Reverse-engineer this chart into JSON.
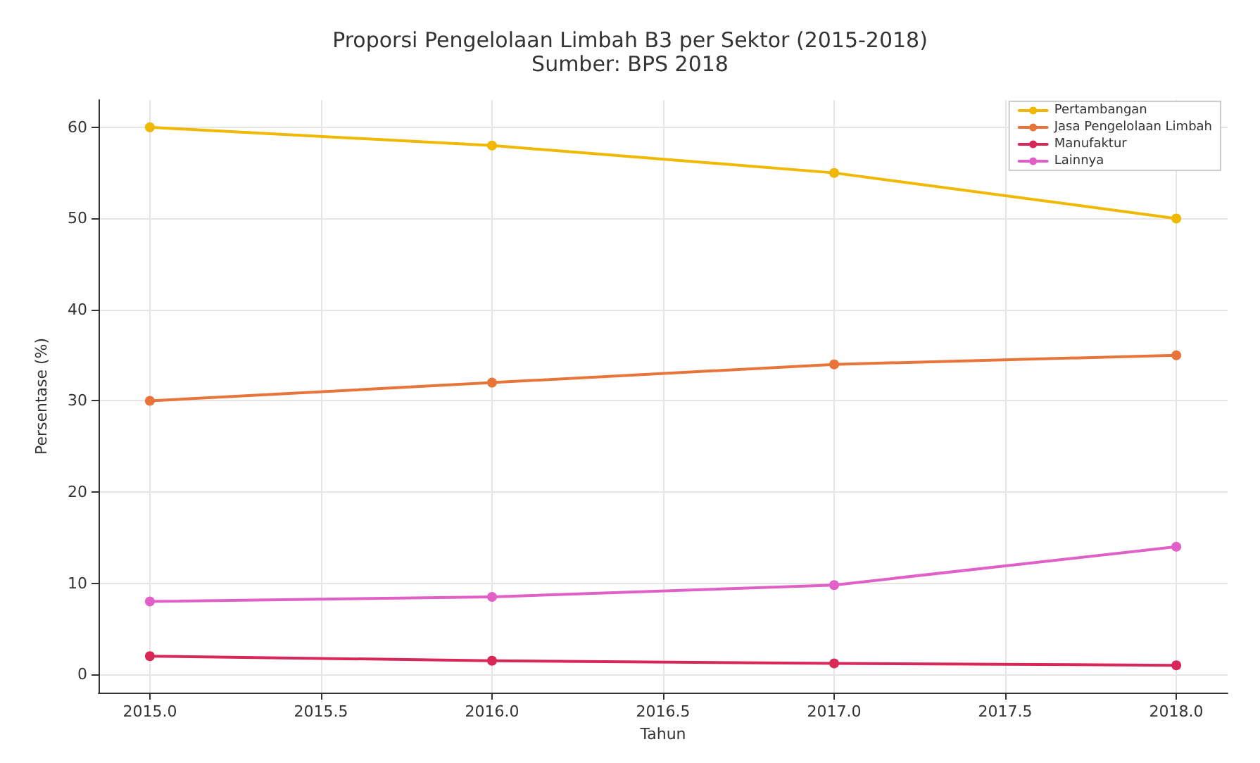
{
  "chart_data": {
    "type": "line",
    "title": "Proporsi Pengelolaan Limbah B3 per Sektor (2015-2018)",
    "subtitle": "Sumber: BPS 2018",
    "xlabel": "Tahun",
    "ylabel": "Persentase (%)",
    "x": [
      2015,
      2016,
      2017,
      2018
    ],
    "series": [
      {
        "name": "Pertambangan",
        "color": "#f0b800",
        "values": [
          60,
          58,
          55,
          50
        ]
      },
      {
        "name": "Jasa Pengelolaan Limbah",
        "color": "#e8743a",
        "values": [
          30,
          32,
          34,
          35
        ]
      },
      {
        "name": "Manufaktur",
        "color": "#d8285a",
        "values": [
          2,
          1.5,
          1.2,
          1
        ]
      },
      {
        "name": "Lainnya",
        "color": "#e060c8",
        "values": [
          8,
          8.5,
          9.8,
          14
        ]
      }
    ],
    "xlim": [
      2014.85,
      2018.15
    ],
    "xticks": [
      {
        "value": 2015,
        "label": "2015.0"
      },
      {
        "value": 2015.5,
        "label": "2015.5"
      },
      {
        "value": 2016,
        "label": "2016.0"
      },
      {
        "value": 2016.5,
        "label": "2016.5"
      },
      {
        "value": 2017,
        "label": "2017.0"
      },
      {
        "value": 2017.5,
        "label": "2017.5"
      },
      {
        "value": 2018,
        "label": "2018.0"
      }
    ],
    "ylim": [
      -2,
      63
    ],
    "yticks": [
      0,
      10,
      20,
      30,
      40,
      50,
      60
    ],
    "grid": true,
    "legend": "top right",
    "marker": "circle",
    "line_style": "solid"
  }
}
